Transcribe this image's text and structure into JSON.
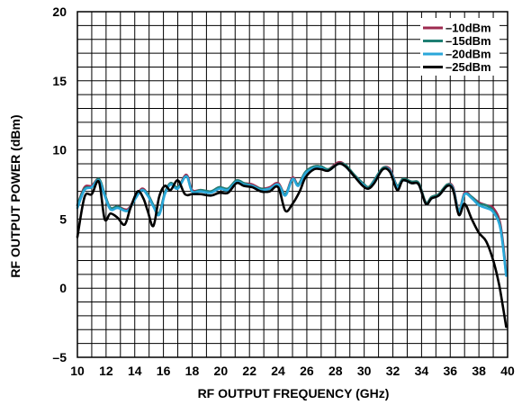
{
  "chart_data": {
    "type": "line",
    "title": "",
    "xlabel": "RF OUTPUT FREQUENCY (GHz)",
    "ylabel": "RF OUTPUT POWER (dBm)",
    "xlim": [
      10,
      40
    ],
    "ylim": [
      -5,
      20
    ],
    "x_ticks": [
      "10",
      "12",
      "14",
      "16",
      "18",
      "20",
      "22",
      "24",
      "26",
      "28",
      "30",
      "32",
      "34",
      "36",
      "38",
      "40"
    ],
    "y_ticks": [
      "–5",
      "0",
      "5",
      "10",
      "15",
      "20"
    ],
    "grid": true,
    "legend_position": "top-right",
    "series": [
      {
        "name": "–10dBm",
        "color": "#9e2a4f",
        "x": [
          10.0,
          10.5,
          11.0,
          11.5,
          11.9,
          12.3,
          12.8,
          13.5,
          14.0,
          14.5,
          14.9,
          15.3,
          15.7,
          16.1,
          16.5,
          17.0,
          17.6,
          18.0,
          18.6,
          19.3,
          19.9,
          20.5,
          21.1,
          21.6,
          22.2,
          22.8,
          23.4,
          24.0,
          24.5,
          25.0,
          25.4,
          25.9,
          26.5,
          27.0,
          27.5,
          28.2,
          28.7,
          29.3,
          29.9,
          30.3,
          30.7,
          31.3,
          31.8,
          32.3,
          32.7,
          33.3,
          33.8,
          34.3,
          34.7,
          35.2,
          35.8,
          36.2,
          36.6,
          37.0,
          37.5,
          38.0,
          38.5,
          39.0,
          39.5,
          39.9
        ],
        "values": [
          6.0,
          7.3,
          7.4,
          7.9,
          6.8,
          5.8,
          5.9,
          5.7,
          6.5,
          7.2,
          6.8,
          6.0,
          5.4,
          6.9,
          7.6,
          7.3,
          8.2,
          7.1,
          7.1,
          7.0,
          7.3,
          7.2,
          7.8,
          7.6,
          7.5,
          7.2,
          7.3,
          7.6,
          6.8,
          8.0,
          7.5,
          8.4,
          8.8,
          8.8,
          8.6,
          9.1,
          8.9,
          8.2,
          7.6,
          7.3,
          7.8,
          8.7,
          8.6,
          7.4,
          7.9,
          7.7,
          7.6,
          6.2,
          6.6,
          6.8,
          7.5,
          7.3,
          5.6,
          6.9,
          6.6,
          6.2,
          6.0,
          5.8,
          4.6,
          1.2
        ]
      },
      {
        "name": "–15dBm",
        "color": "#1f7f73",
        "x": [
          10.0,
          10.5,
          11.0,
          11.5,
          11.9,
          12.3,
          12.8,
          13.5,
          14.0,
          14.5,
          14.9,
          15.3,
          15.7,
          16.1,
          16.5,
          17.0,
          17.6,
          18.0,
          18.6,
          19.3,
          19.9,
          20.5,
          21.1,
          21.6,
          22.2,
          22.8,
          23.4,
          24.0,
          24.5,
          25.0,
          25.4,
          25.9,
          26.5,
          27.0,
          27.5,
          28.2,
          28.7,
          29.3,
          29.9,
          30.3,
          30.7,
          31.3,
          31.8,
          32.3,
          32.7,
          33.3,
          33.8,
          34.3,
          34.7,
          35.2,
          35.8,
          36.2,
          36.6,
          37.0,
          37.5,
          38.0,
          38.5,
          39.0,
          39.5,
          39.9
        ],
        "values": [
          6.0,
          7.2,
          7.3,
          7.9,
          6.8,
          5.8,
          5.9,
          5.6,
          6.5,
          7.1,
          6.8,
          6.0,
          5.4,
          6.9,
          7.6,
          7.3,
          8.1,
          7.0,
          7.1,
          7.0,
          7.3,
          7.2,
          7.8,
          7.6,
          7.4,
          7.2,
          7.2,
          7.5,
          6.8,
          7.9,
          7.5,
          8.4,
          8.8,
          8.8,
          8.6,
          9.0,
          8.9,
          8.2,
          7.6,
          7.3,
          7.8,
          8.7,
          8.5,
          7.4,
          7.9,
          7.7,
          7.6,
          6.2,
          6.6,
          6.8,
          7.5,
          7.2,
          5.6,
          6.8,
          6.6,
          6.1,
          6.0,
          5.6,
          4.4,
          1.0
        ]
      },
      {
        "name": "–20dBm",
        "color": "#2aa7d9",
        "x": [
          10.0,
          10.5,
          11.0,
          11.5,
          11.9,
          12.3,
          12.8,
          13.5,
          14.0,
          14.5,
          14.9,
          15.3,
          15.7,
          16.1,
          16.5,
          17.0,
          17.6,
          18.0,
          18.6,
          19.3,
          19.9,
          20.5,
          21.1,
          21.6,
          22.2,
          22.8,
          23.4,
          24.0,
          24.5,
          25.0,
          25.4,
          25.9,
          26.5,
          27.0,
          27.5,
          28.2,
          28.7,
          29.3,
          29.9,
          30.3,
          30.7,
          31.3,
          31.8,
          32.3,
          32.7,
          33.3,
          33.8,
          34.3,
          34.7,
          35.2,
          35.8,
          36.2,
          36.6,
          37.0,
          37.5,
          38.0,
          38.5,
          39.0,
          39.5,
          39.9
        ],
        "values": [
          5.8,
          7.1,
          7.3,
          7.8,
          6.7,
          5.7,
          5.8,
          5.6,
          6.4,
          7.1,
          6.7,
          5.9,
          5.3,
          6.8,
          7.5,
          7.2,
          8.1,
          7.0,
          7.0,
          6.9,
          7.2,
          7.1,
          7.7,
          7.5,
          7.4,
          7.1,
          7.2,
          7.5,
          6.7,
          7.9,
          7.4,
          8.3,
          8.7,
          8.7,
          8.5,
          9.0,
          8.8,
          8.1,
          7.5,
          7.2,
          7.7,
          8.6,
          8.5,
          7.3,
          7.8,
          7.6,
          7.5,
          6.1,
          6.5,
          6.7,
          7.4,
          7.2,
          5.5,
          6.8,
          6.5,
          6.0,
          5.8,
          5.5,
          4.3,
          0.9
        ]
      },
      {
        "name": "–25dBm",
        "color": "#000000",
        "x": [
          10.0,
          10.5,
          11.0,
          11.5,
          11.9,
          12.3,
          12.8,
          13.3,
          13.7,
          14.2,
          14.6,
          14.9,
          15.3,
          15.7,
          16.1,
          16.5,
          17.0,
          17.5,
          18.0,
          18.6,
          19.3,
          19.9,
          20.5,
          21.1,
          21.6,
          22.2,
          22.8,
          23.4,
          24.0,
          24.5,
          25.0,
          25.5,
          25.9,
          26.5,
          27.0,
          27.5,
          28.2,
          28.7,
          29.3,
          29.9,
          30.3,
          30.7,
          31.3,
          31.8,
          32.3,
          32.7,
          33.3,
          33.8,
          34.3,
          34.7,
          35.2,
          35.8,
          36.2,
          36.6,
          37.0,
          37.5,
          38.0,
          38.5,
          39.0,
          39.4,
          39.7,
          39.9
        ],
        "values": [
          3.7,
          6.6,
          6.8,
          7.7,
          5.0,
          5.4,
          5.1,
          4.6,
          5.8,
          7.0,
          6.5,
          5.6,
          4.5,
          6.6,
          7.4,
          7.1,
          7.8,
          6.8,
          6.8,
          6.8,
          6.7,
          6.9,
          6.9,
          7.6,
          7.4,
          7.3,
          7.0,
          7.0,
          7.3,
          5.6,
          6.1,
          7.0,
          8.0,
          8.6,
          8.6,
          8.5,
          9.0,
          8.8,
          8.1,
          7.4,
          7.2,
          7.6,
          8.6,
          8.4,
          7.1,
          7.8,
          7.6,
          7.5,
          6.1,
          6.5,
          6.7,
          7.4,
          7.1,
          5.3,
          6.1,
          5.0,
          4.0,
          3.4,
          2.0,
          0.3,
          -1.5,
          -2.8
        ]
      }
    ]
  }
}
